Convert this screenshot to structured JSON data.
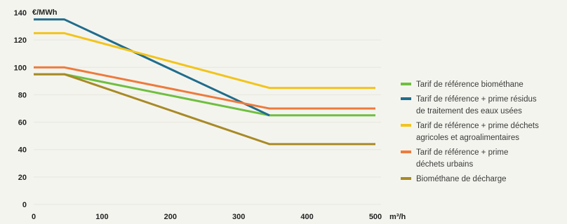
{
  "chart_data": {
    "type": "line",
    "title": "",
    "xlabel": "m³/h",
    "ylabel": "€/MWh",
    "xlim": [
      0,
      500
    ],
    "ylim": [
      0,
      140
    ],
    "x_ticks": [
      0,
      100,
      200,
      300,
      400,
      500
    ],
    "y_ticks": [
      0,
      20,
      40,
      60,
      80,
      100,
      120,
      140
    ],
    "grid": "horizontal",
    "legend_position": "right",
    "series": [
      {
        "name": "Tarif de référence biométhane",
        "color": "#6fbf3f",
        "points": [
          [
            0,
            95
          ],
          [
            45,
            95
          ],
          [
            345,
            65
          ],
          [
            500,
            65
          ]
        ]
      },
      {
        "name": "Tarif de référence + prime résidus de traitement des eaux usées",
        "color": "#1f6d8c",
        "points": [
          [
            0,
            135
          ],
          [
            45,
            135
          ],
          [
            345,
            65
          ]
        ]
      },
      {
        "name": "Tarif de référence + prime déchets agricoles et agroalimentaires",
        "color": "#f2c41c",
        "points": [
          [
            0,
            125
          ],
          [
            45,
            125
          ],
          [
            345,
            85
          ],
          [
            500,
            85
          ]
        ]
      },
      {
        "name": "Tarif de référence + prime déchets urbains",
        "color": "#ee7a3b",
        "points": [
          [
            0,
            100
          ],
          [
            45,
            100
          ],
          [
            345,
            70
          ],
          [
            500,
            70
          ]
        ]
      },
      {
        "name": "Biométhane de décharge",
        "color": "#a88a25",
        "points": [
          [
            0,
            95
          ],
          [
            45,
            95
          ],
          [
            345,
            44
          ],
          [
            500,
            44
          ]
        ]
      }
    ],
    "legend": [
      {
        "lines": [
          "Tarif de référence biométhane"
        ],
        "color": "#6fbf3f"
      },
      {
        "lines": [
          "Tarif de référence + prime résidus",
          "de traitement des eaux usées"
        ],
        "color": "#1f6d8c"
      },
      {
        "lines": [
          "Tarif de référence + prime déchets",
          "agricoles et agroalimentaires"
        ],
        "color": "#f2c41c"
      },
      {
        "lines": [
          "Tarif de référence + prime",
          "déchets urbains"
        ],
        "color": "#ee7a3b"
      },
      {
        "lines": [
          "Biométhane de décharge"
        ],
        "color": "#a88a25"
      }
    ]
  }
}
